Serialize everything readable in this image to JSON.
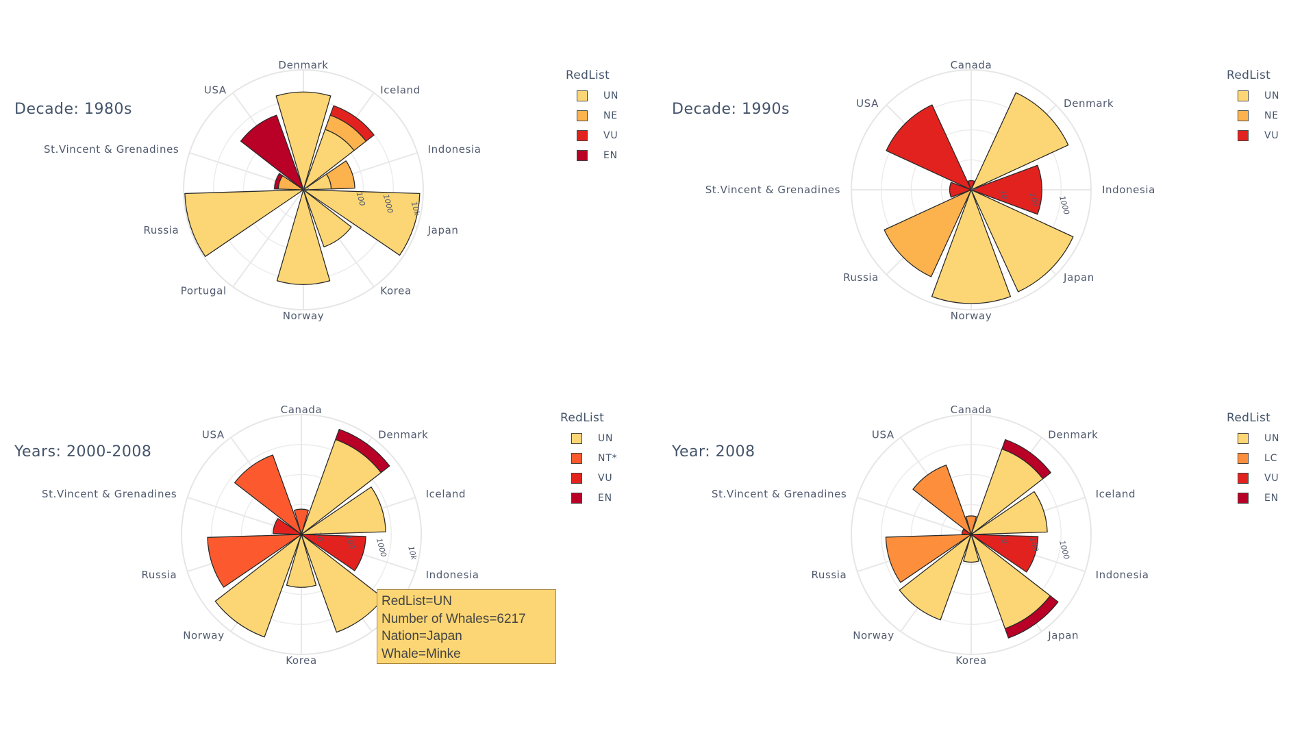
{
  "colors": {
    "UN": "#fcd674",
    "NE": "#fcb24d",
    "NT*": "#fc5a2e",
    "LC": "#fd8f3c",
    "VU": "#e2221f",
    "EN": "#b90026"
  },
  "tooltip": {
    "lines": [
      "RedList=UN",
      "Number of Whales=6217",
      "Nation=Japan",
      "Whale=Minke"
    ]
  },
  "chart_data": [
    {
      "type": "barpolar",
      "title": "Decade: 1980s",
      "radial_axis": "log",
      "radial_ticks": [
        "0",
        "100",
        "1000",
        "10k"
      ],
      "angular_categories": [
        "Denmark",
        "Iceland",
        "Indonesia",
        "Japan",
        "Korea",
        "Norway",
        "Portugal",
        "Russia",
        "St.Vincent & Grenadines",
        "USA"
      ],
      "legend_title": "RedList",
      "legend": [
        "UN",
        "NE",
        "VU",
        "EN"
      ],
      "series": [
        {
          "name": "UN",
          "values": {
            "Denmark": 3200,
            "Iceland": 200,
            "Indonesia": 10,
            "Japan": 15000,
            "Korea": 150,
            "Norway": 2500,
            "Portugal": 0,
            "Russia": 18000,
            "St.Vincent & Grenadines": 0,
            "USA": 0
          }
        },
        {
          "name": "NE",
          "values": {
            "Denmark": 0,
            "Iceland": 500,
            "Indonesia": 60,
            "Japan": 0,
            "Korea": 0,
            "Norway": 0,
            "Portugal": 0,
            "Russia": 0,
            "St.Vincent & Grenadines": 8,
            "USA": 0
          }
        },
        {
          "name": "VU",
          "values": {
            "Denmark": 0,
            "Iceland": 900,
            "Indonesia": 0,
            "Japan": 0,
            "Korea": 0,
            "Norway": 0,
            "Portugal": 0,
            "Russia": 0,
            "St.Vincent & Grenadines": 0,
            "USA": 0
          }
        },
        {
          "name": "EN",
          "values": {
            "Denmark": 0,
            "Iceland": 0,
            "Indonesia": 0,
            "Japan": 0,
            "Korea": 0,
            "Norway": 0,
            "Portugal": 0,
            "Russia": 0,
            "St.Vincent & Grenadines": 3,
            "USA": 700
          }
        }
      ]
    },
    {
      "type": "barpolar",
      "title": "Decade: 1990s",
      "radial_axis": "log",
      "radial_ticks": [
        "1",
        "10",
        "100",
        "1000"
      ],
      "angular_categories": [
        "Canada",
        "Denmark",
        "Indonesia",
        "Japan",
        "Norway",
        "Russia",
        "St.Vincent & Grenadines",
        "USA"
      ],
      "legend_title": "RedList",
      "legend": [
        "UN",
        "NE",
        "VU"
      ],
      "series": [
        {
          "name": "UN",
          "values": {
            "Canada": 0,
            "Denmark": 3000,
            "Indonesia": 0,
            "Japan": 4500,
            "Norway": 5000,
            "Russia": 0,
            "St.Vincent & Grenadines": 0,
            "USA": 0
          }
        },
        {
          "name": "NE",
          "values": {
            "Canada": 0,
            "Denmark": 0,
            "Indonesia": 0,
            "Japan": 0,
            "Norway": 0,
            "Russia": 1300,
            "St.Vincent & Grenadines": 0,
            "USA": 0
          }
        },
        {
          "name": "VU",
          "values": {
            "Canada": 2,
            "Denmark": 0,
            "Indonesia": 200,
            "Japan": 0,
            "Norway": 0,
            "Russia": 0,
            "St.Vincent & Grenadines": 5,
            "USA": 1100
          }
        }
      ]
    },
    {
      "type": "barpolar",
      "title": "Years: 2000-2008",
      "radial_axis": "log",
      "radial_ticks": [
        "10",
        "100",
        "1000",
        "10k"
      ],
      "angular_categories": [
        "Canada",
        "Denmark",
        "Iceland",
        "Indonesia",
        "Japan",
        "Korea",
        "Norway",
        "Russia",
        "St.Vincent & Grenadines",
        "USA"
      ],
      "legend_title": "RedList",
      "legend": [
        "UN",
        "NT*",
        "VU",
        "EN"
      ],
      "series": [
        {
          "name": "UN",
          "values": {
            "Canada": 0,
            "Denmark": 5000,
            "Iceland": 1500,
            "Indonesia": 0,
            "Japan": 6217,
            "Korea": 150,
            "Norway": 9000,
            "Russia": 0,
            "St.Vincent & Grenadines": 0,
            "USA": 0
          }
        },
        {
          "name": "NT*",
          "values": {
            "Canada": 20,
            "Denmark": 0,
            "Iceland": 0,
            "Indonesia": 0,
            "Japan": 0,
            "Korea": 0,
            "Norway": 0,
            "Russia": 3000,
            "St.Vincent & Grenadines": 0,
            "USA": 1500
          }
        },
        {
          "name": "VU",
          "values": {
            "Canada": 0,
            "Denmark": 0,
            "Iceland": 0,
            "Indonesia": 350,
            "Japan": 0,
            "Korea": 0,
            "Norway": 0,
            "Russia": 0,
            "St.Vincent & Grenadines": 25,
            "USA": 0
          }
        },
        {
          "name": "EN",
          "values": {
            "Canada": 0,
            "Denmark": 6000,
            "Iceland": 0,
            "Indonesia": 0,
            "Japan": 0,
            "Korea": 0,
            "Norway": 0,
            "Russia": 0,
            "St.Vincent & Grenadines": 0,
            "USA": 0
          }
        }
      ]
    },
    {
      "type": "barpolar",
      "title": "Year: 2008",
      "radial_axis": "log",
      "radial_ticks": [
        "10",
        "100",
        "1000"
      ],
      "angular_categories": [
        "Canada",
        "Denmark",
        "Iceland",
        "Indonesia",
        "Japan",
        "Korea",
        "Norway",
        "Russia",
        "St.Vincent & Grenadines",
        "USA"
      ],
      "legend_title": "RedList",
      "legend": [
        "UN",
        "LC",
        "VU",
        "EN"
      ],
      "series": [
        {
          "name": "UN",
          "values": {
            "Canada": 0,
            "Denmark": 900,
            "Iceland": 300,
            "Indonesia": 0,
            "Japan": 1800,
            "Korea": 8,
            "Norway": 900,
            "Russia": 0,
            "St.Vincent & Grenadines": 0,
            "USA": 0
          }
        },
        {
          "name": "LC",
          "values": {
            "Canada": 4,
            "Denmark": 0,
            "Iceland": 0,
            "Indonesia": 0,
            "Japan": 0,
            "Korea": 0,
            "Norway": 0,
            "Russia": 600,
            "St.Vincent & Grenadines": 0,
            "USA": 250
          }
        },
        {
          "name": "VU",
          "values": {
            "Canada": 0,
            "Denmark": 0,
            "Iceland": 0,
            "Indonesia": 150,
            "Japan": 0,
            "Korea": 0,
            "Norway": 0,
            "Russia": 0,
            "St.Vincent & Grenadines": 2,
            "USA": 0
          }
        },
        {
          "name": "EN",
          "values": {
            "Canada": 0,
            "Denmark": 1000,
            "Iceland": 0,
            "Indonesia": 0,
            "Japan": 2000,
            "Korea": 0,
            "Norway": 0,
            "Russia": 0,
            "St.Vincent & Grenadines": 0,
            "USA": 0
          }
        }
      ]
    }
  ]
}
